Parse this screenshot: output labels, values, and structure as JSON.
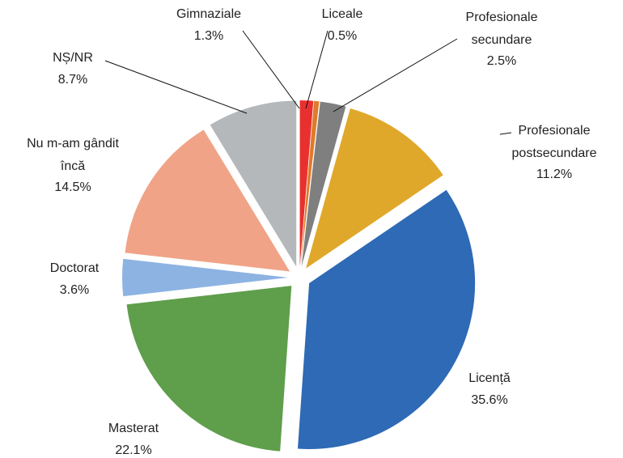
{
  "chart_data": {
    "type": "pie",
    "categories": [
      "Gimnaziale",
      "Liceale",
      "Profesionale\nsecundare",
      "Profesionale\npostsecundare",
      "Licență",
      "Masterat",
      "Doctorat",
      "Nu m-am gândit\nîncă",
      "NȘ/NR"
    ],
    "values": [
      1.3,
      0.5,
      2.5,
      11.2,
      35.6,
      22.1,
      3.6,
      14.5,
      8.7
    ],
    "value_labels": [
      "1.3%",
      "0.5%",
      "2.5%",
      "11.2%",
      "35.6%",
      "22.1%",
      "3.6%",
      "14.5%",
      "8.7%"
    ],
    "colors": [
      "#e8312f",
      "#e07b2a",
      "#7f7f7f",
      "#e0a82a",
      "#2e6ab5",
      "#5f9e4b",
      "#8db3e2",
      "#f0a387",
      "#b4b8bb"
    ]
  }
}
